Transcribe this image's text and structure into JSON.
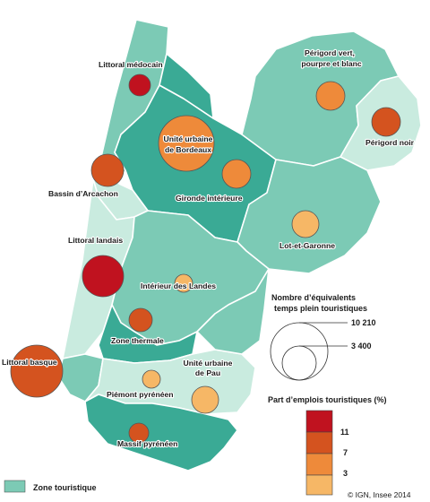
{
  "colors": {
    "zone_teal": "#3aaa95",
    "zone_mid": "#7ccab5",
    "zone_light": "#c9ebdf",
    "sea": "#ffffff",
    "class_11": "#c0121f",
    "class_7": "#d4531f",
    "class_3": "#ee8a3a",
    "class_low": "#f6b766"
  },
  "regions": [
    {
      "name": "Littoral médocain",
      "share_class": "11"
    },
    {
      "name": "Périgord vert, pourpre et blanc",
      "share_class": "3"
    },
    {
      "name": "Unité urbaine de Bordeaux",
      "share_class": "3"
    },
    {
      "name": "Périgord noir",
      "share_class": "7"
    },
    {
      "name": "Bassin d’Arcachon",
      "share_class": "7"
    },
    {
      "name": "Gironde intérieure",
      "share_class": "3"
    },
    {
      "name": "Lot-et-Garonne",
      "share_class": "low"
    },
    {
      "name": "Littoral landais",
      "share_class": "11"
    },
    {
      "name": "Intérieur des Landes",
      "share_class": "low"
    },
    {
      "name": "Zone thermale",
      "share_class": "7"
    },
    {
      "name": "Littoral basque",
      "share_class": "7"
    },
    {
      "name": "Unité urbaine de Pau",
      "share_class": "low"
    },
    {
      "name": "Piémont pyrénéen",
      "share_class": "low"
    },
    {
      "name": "Massif pyrénéen",
      "share_class": "7"
    }
  ],
  "legend": {
    "size_title_1": "Nombre d’équivalents",
    "size_title_2": "temps plein touristiques",
    "size_big": "10 210",
    "size_small": "3 400",
    "share_title": "Part d’emplois touristiques (%)",
    "breaks": [
      "11",
      "7",
      "3"
    ],
    "zone_label": "Zone touristique"
  },
  "credit": "© IGN, Insee 2014"
}
